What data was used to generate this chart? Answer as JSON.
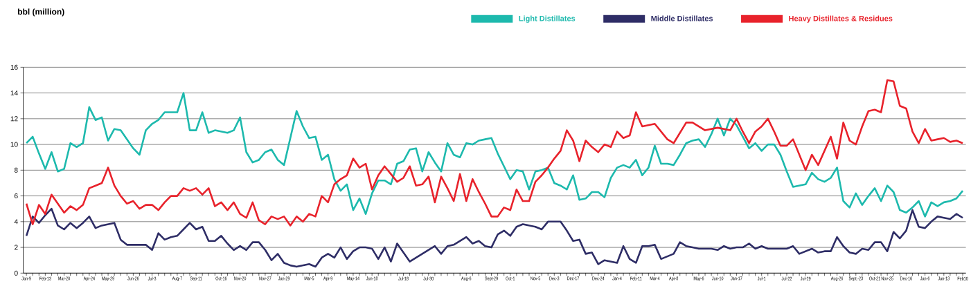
{
  "chart_data": {
    "type": "line",
    "annotations": [
      "bbl (million)"
    ],
    "categories": [
      "Jan-9",
      null,
      null,
      "Feb-13",
      null,
      null,
      "Mar-20",
      null,
      null,
      null,
      "Apr-24",
      null,
      null,
      "May-29",
      null,
      null,
      null,
      "Jun-26",
      null,
      null,
      "Jul-3",
      null,
      null,
      null,
      "Aug-7",
      null,
      null,
      "Sep-11",
      null,
      null,
      null,
      "Oct-16",
      null,
      null,
      "Nov-20",
      null,
      null,
      null,
      "Nov-27",
      null,
      null,
      "Jan-29",
      null,
      null,
      null,
      "Mar-5",
      null,
      null,
      "Apr-9",
      null,
      null,
      null,
      "May-14",
      null,
      null,
      "Jun-18",
      null,
      null,
      null,
      null,
      "Jul-18",
      null,
      null,
      null,
      "Jul-30",
      null,
      null,
      null,
      null,
      null,
      "Aug-6",
      null,
      null,
      null,
      "Sept-29",
      null,
      null,
      "Oct-1",
      null,
      null,
      null,
      "Nov-5",
      null,
      null,
      "Dec-3",
      null,
      null,
      "Dec-17",
      null,
      null,
      null,
      "Dec-24",
      null,
      null,
      "Jan-4",
      null,
      null,
      "Feb-11",
      null,
      null,
      "Mar-4",
      null,
      null,
      "Apr-8",
      null,
      null,
      null,
      "May-6",
      null,
      null,
      "Jun-10",
      null,
      null,
      "Jan-17",
      null,
      null,
      null,
      "Jul-1",
      null,
      null,
      null,
      "Jul-22",
      null,
      null,
      "Jul-29",
      null,
      null,
      null,
      null,
      "Aug-26",
      null,
      null,
      "Sept.-23",
      null,
      null,
      "Oct-21",
      null,
      "Nov-25",
      null,
      null,
      "Dec-16",
      null,
      null,
      "Jan-6",
      null,
      null,
      "Jan-13",
      null,
      null,
      "Feb10"
    ],
    "series": [
      {
        "name": "Light Distillates",
        "color": "#1db9ad",
        "values": [
          10.1,
          10.6,
          9.3,
          8.1,
          9.4,
          7.9,
          8.1,
          10.1,
          9.8,
          10.1,
          12.9,
          11.9,
          12.1,
          10.3,
          11.2,
          11.1,
          10.4,
          9.7,
          9.2,
          11.1,
          11.6,
          11.9,
          12.5,
          12.5,
          12.5,
          14.0,
          11.1,
          11.1,
          12.5,
          10.9,
          11.1,
          11.0,
          10.9,
          11.1,
          12.1,
          9.4,
          8.6,
          8.8,
          9.4,
          9.6,
          8.8,
          8.4,
          10.5,
          12.6,
          11.4,
          10.5,
          10.6,
          8.8,
          9.2,
          7.3,
          6.4,
          6.9,
          4.9,
          5.8,
          4.6,
          6.2,
          7.2,
          7.2,
          6.9,
          8.5,
          8.7,
          9.6,
          9.7,
          7.9,
          9.4,
          8.6,
          7.9,
          10.1,
          9.2,
          9.0,
          10.1,
          10.0,
          10.3,
          10.4,
          10.5,
          9.3,
          8.3,
          7.3,
          8.0,
          7.9,
          6.5,
          7.9,
          8.0,
          8.2,
          7.0,
          6.8,
          6.5,
          7.6,
          5.7,
          5.8,
          6.3,
          6.3,
          5.9,
          7.4,
          8.2,
          8.4,
          8.2,
          8.8,
          7.6,
          8.2,
          9.9,
          8.5,
          8.5,
          8.4,
          9.2,
          10.1,
          10.3,
          10.4,
          9.8,
          10.8,
          12.0,
          10.7,
          12.0,
          11.5,
          10.6,
          9.7,
          10.1,
          9.5,
          10.0,
          10.0,
          9.2,
          7.9,
          6.7,
          6.8,
          6.9,
          7.8,
          7.3,
          7.1,
          7.4,
          8.2,
          5.6,
          5.1,
          6.2,
          5.3,
          6.0,
          6.6,
          5.6,
          6.8,
          6.3,
          4.9,
          4.7,
          5.1,
          5.6,
          4.4,
          5.5,
          5.2,
          5.5,
          5.6,
          5.8,
          6.4
        ]
      },
      {
        "name": "Middle Distillates",
        "color": "#2e2d66",
        "values": [
          2.9,
          4.4,
          3.9,
          4.5,
          5.0,
          3.7,
          3.4,
          3.9,
          3.5,
          3.9,
          4.4,
          3.5,
          3.7,
          3.8,
          3.9,
          2.6,
          2.2,
          2.2,
          2.2,
          2.2,
          1.8,
          3.1,
          2.6,
          2.8,
          2.9,
          3.4,
          3.9,
          3.4,
          3.6,
          2.5,
          2.5,
          2.9,
          2.3,
          1.8,
          2.1,
          1.8,
          2.4,
          2.4,
          1.8,
          1.0,
          1.5,
          0.8,
          0.6,
          0.5,
          0.6,
          0.7,
          0.5,
          1.2,
          1.5,
          1.2,
          2.0,
          1.1,
          1.7,
          2.0,
          2.0,
          1.9,
          1.1,
          2.0,
          0.9,
          2.3,
          1.6,
          0.9,
          1.2,
          1.5,
          1.8,
          2.1,
          1.5,
          2.1,
          2.2,
          2.5,
          2.8,
          2.3,
          2.5,
          2.1,
          2.0,
          3.0,
          3.3,
          2.9,
          3.6,
          3.8,
          3.7,
          3.6,
          3.4,
          4.0,
          4.0,
          4.0,
          3.3,
          2.5,
          2.6,
          1.5,
          1.6,
          0.7,
          1.0,
          0.9,
          0.8,
          2.1,
          1.1,
          0.8,
          2.1,
          2.1,
          2.2,
          1.1,
          1.3,
          1.5,
          2.4,
          2.1,
          2.0,
          1.9,
          1.9,
          1.9,
          1.8,
          2.1,
          1.9,
          2.0,
          2.0,
          2.3,
          1.9,
          2.1,
          1.9,
          1.9,
          1.9,
          1.9,
          2.1,
          1.5,
          1.7,
          1.9,
          1.6,
          1.7,
          1.7,
          2.8,
          2.1,
          1.6,
          1.5,
          1.9,
          1.8,
          2.4,
          2.4,
          1.7,
          3.2,
          2.7,
          3.3,
          4.9,
          3.6,
          3.5,
          4.0,
          4.4,
          4.3,
          4.2,
          4.6,
          4.3
        ]
      },
      {
        "name": "Heavy Distillates & Residues",
        "color": "#e8222b",
        "values": [
          5.4,
          3.8,
          5.3,
          4.6,
          6.1,
          5.4,
          4.7,
          5.2,
          4.9,
          5.3,
          6.6,
          6.8,
          7.0,
          8.2,
          6.8,
          6.0,
          5.4,
          5.6,
          5.0,
          5.3,
          5.3,
          4.9,
          5.5,
          6.0,
          6.0,
          6.6,
          6.4,
          6.6,
          6.1,
          6.6,
          5.2,
          5.5,
          4.9,
          5.5,
          4.6,
          4.3,
          5.5,
          4.1,
          3.8,
          4.4,
          4.2,
          4.4,
          3.7,
          4.4,
          4.0,
          4.6,
          4.4,
          6.0,
          5.5,
          6.9,
          7.3,
          7.6,
          8.9,
          8.2,
          8.5,
          6.5,
          7.6,
          8.3,
          7.7,
          7.1,
          7.4,
          8.3,
          6.8,
          6.9,
          7.5,
          5.5,
          7.5,
          6.6,
          5.6,
          7.7,
          5.6,
          7.3,
          6.3,
          5.4,
          4.4,
          4.4,
          5.1,
          4.9,
          6.5,
          5.6,
          5.6,
          7.1,
          7.6,
          8.2,
          8.9,
          9.5,
          11.1,
          10.3,
          8.7,
          10.3,
          9.8,
          9.4,
          10.0,
          9.8,
          11.0,
          10.5,
          10.7,
          12.5,
          11.4,
          11.5,
          11.6,
          11.0,
          10.4,
          10.1,
          10.9,
          11.7,
          11.7,
          11.4,
          11.1,
          11.2,
          11.3,
          11.2,
          11.1,
          12.0,
          11.0,
          10.1,
          11.0,
          11.4,
          12.0,
          11.0,
          9.9,
          9.9,
          10.4,
          9.2,
          8.0,
          9.2,
          8.4,
          9.5,
          10.6,
          8.9,
          11.7,
          10.3,
          10.0,
          11.4,
          12.6,
          12.7,
          12.5,
          15.0,
          14.9,
          13.0,
          12.8,
          11.0,
          10.1,
          11.2,
          10.3,
          10.4,
          10.5,
          10.2,
          10.3,
          10.1
        ]
      }
    ],
    "ylim": [
      0,
      16
    ],
    "yticks": [
      0,
      2,
      4,
      6,
      8,
      10,
      12,
      14,
      16
    ],
    "grid": "y",
    "legend": "top",
    "marker": "none",
    "line_style": "solid"
  }
}
